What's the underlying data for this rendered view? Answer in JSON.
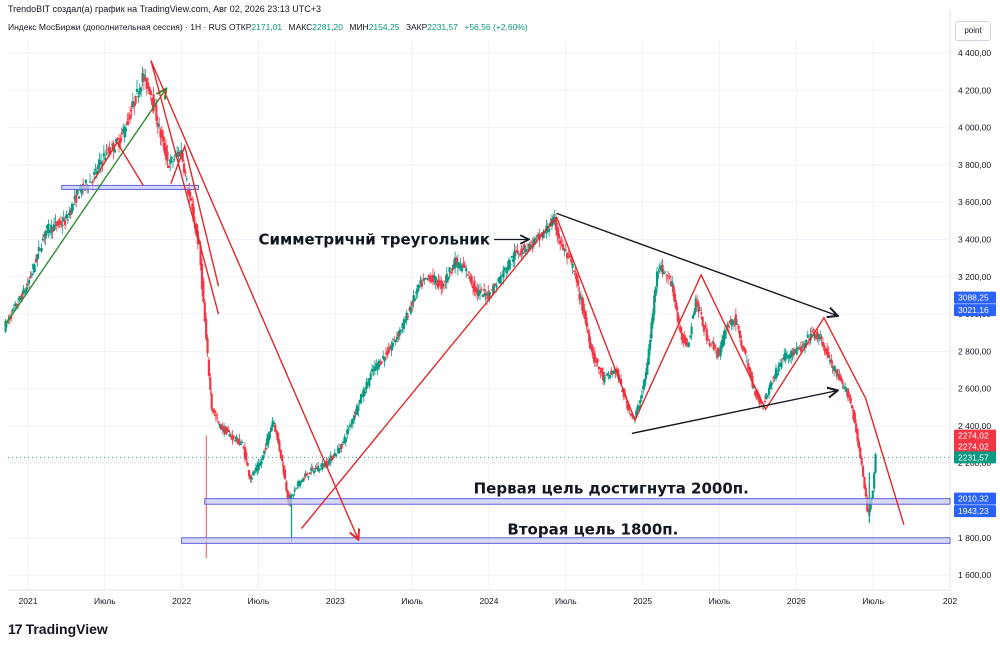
{
  "header": {
    "created_by": "TrendoBIT создал(а) график на TradingView.com, Авг 02, 2026 23:13 UTC+3",
    "instrument": "Индекс МосБиржи (дополнительная сессия) · 1Н · RUS",
    "open_label": "ОТКР",
    "open_value": "2171,01",
    "high_label": "МАКС",
    "high_value": "2281,20",
    "low_label": "МИН",
    "low_value": "2154,25",
    "close_label": "ЗАКР",
    "close_value": "2231,57",
    "change_value": "+56,56 (+2,60%)"
  },
  "scale_mode": "point",
  "footer": {
    "logo_mark": "17",
    "logo_text": "TradingView"
  },
  "colors": {
    "up": "#089981",
    "down": "#f23645",
    "trend_red": "#e0292b",
    "trend_green": "#2e8b2e",
    "zone_fill": "#c9cbf4",
    "zone_border": "#6062d8",
    "badge_blue": "#2962ff",
    "badge_red": "#f23645",
    "badge_green": "#089981"
  },
  "chart_data": {
    "type": "candlestick",
    "title": "Индекс МосБиржи (дополнительная сессия)",
    "y_ticks": [
      "4 400,00",
      "4 200,00",
      "4 000,00",
      "3 800,00",
      "3 600,00",
      "3 400,00",
      "3 200,00",
      "3 000,00",
      "2 800,00",
      "2 600,00",
      "2 400,00",
      "2 200,00",
      "1 800,00",
      "1 600,00"
    ],
    "y_tick_values": [
      4400,
      4200,
      4000,
      3800,
      3600,
      3400,
      3200,
      3000,
      2800,
      2600,
      2400,
      2200,
      1800,
      1600
    ],
    "x_ticks": [
      "2021",
      "Июль",
      "2022",
      "Июль",
      "2023",
      "Июль",
      "2024",
      "Июль",
      "2025",
      "Июль",
      "2026",
      "Июль",
      "202"
    ],
    "x_tick_values": [
      2021.0,
      2021.5,
      2022.0,
      2022.5,
      2023.0,
      2023.5,
      2024.0,
      2024.5,
      2025.0,
      2025.5,
      2026.0,
      2026.5,
      2027.0
    ],
    "xlim": [
      2021.0,
      2027.0
    ],
    "ylim": [
      1520,
      4470
    ],
    "price_path": [
      [
        2020.85,
        2930
      ],
      [
        2021.0,
        3150
      ],
      [
        2021.12,
        3450
      ],
      [
        2021.25,
        3500
      ],
      [
        2021.33,
        3650
      ],
      [
        2021.42,
        3720
      ],
      [
        2021.5,
        3850
      ],
      [
        2021.6,
        3930
      ],
      [
        2021.66,
        4050
      ],
      [
        2021.75,
        4270
      ],
      [
        2021.8,
        4200
      ],
      [
        2021.87,
        3950
      ],
      [
        2021.92,
        3800
      ],
      [
        2022.0,
        3880
      ],
      [
        2022.05,
        3650
      ],
      [
        2022.12,
        3350
      ],
      [
        2022.16,
        2900
      ],
      [
        2022.2,
        2500
      ],
      [
        2022.25,
        2400
      ],
      [
        2022.32,
        2350
      ],
      [
        2022.4,
        2300
      ],
      [
        2022.45,
        2120
      ],
      [
        2022.52,
        2200
      ],
      [
        2022.6,
        2440
      ],
      [
        2022.66,
        2200
      ],
      [
        2022.7,
        1990
      ],
      [
        2022.77,
        2100
      ],
      [
        2022.85,
        2160
      ],
      [
        2022.95,
        2200
      ],
      [
        2023.05,
        2300
      ],
      [
        2023.15,
        2510
      ],
      [
        2023.25,
        2700
      ],
      [
        2023.35,
        2800
      ],
      [
        2023.45,
        2950
      ],
      [
        2023.55,
        3150
      ],
      [
        2023.62,
        3200
      ],
      [
        2023.7,
        3150
      ],
      [
        2023.78,
        3280
      ],
      [
        2023.86,
        3230
      ],
      [
        2023.92,
        3120
      ],
      [
        2024.0,
        3100
      ],
      [
        2024.08,
        3200
      ],
      [
        2024.17,
        3320
      ],
      [
        2024.27,
        3370
      ],
      [
        2024.35,
        3420
      ],
      [
        2024.4,
        3480
      ],
      [
        2024.43,
        3500
      ],
      [
        2024.47,
        3380
      ],
      [
        2024.55,
        3250
      ],
      [
        2024.62,
        3010
      ],
      [
        2024.68,
        2780
      ],
      [
        2024.75,
        2650
      ],
      [
        2024.83,
        2700
      ],
      [
        2024.9,
        2520
      ],
      [
        2024.95,
        2430
      ],
      [
        2025.0,
        2580
      ],
      [
        2025.03,
        2700
      ],
      [
        2025.07,
        3000
      ],
      [
        2025.1,
        3260
      ],
      [
        2025.15,
        3220
      ],
      [
        2025.2,
        3150
      ],
      [
        2025.25,
        2880
      ],
      [
        2025.3,
        2840
      ],
      [
        2025.35,
        3080
      ],
      [
        2025.42,
        2880
      ],
      [
        2025.5,
        2780
      ],
      [
        2025.55,
        2930
      ],
      [
        2025.6,
        2980
      ],
      [
        2025.67,
        2780
      ],
      [
        2025.72,
        2620
      ],
      [
        2025.78,
        2500
      ],
      [
        2025.85,
        2650
      ],
      [
        2025.92,
        2770
      ],
      [
        2026.0,
        2800
      ],
      [
        2026.05,
        2820
      ],
      [
        2026.1,
        2900
      ],
      [
        2026.16,
        2870
      ],
      [
        2026.22,
        2750
      ],
      [
        2026.3,
        2620
      ],
      [
        2026.35,
        2560
      ],
      [
        2026.4,
        2350
      ],
      [
        2026.44,
        2120
      ],
      [
        2026.47,
        1920
      ],
      [
        2026.5,
        2050
      ],
      [
        2026.52,
        2231.57
      ]
    ],
    "horizontal_zones": [
      {
        "y_low": 3670,
        "y_high": 3690,
        "x_start": 2021.22,
        "x_end": 2022.11
      },
      {
        "y_low": 1980,
        "y_high": 2010,
        "x_start": 2022.15,
        "x_end": 2027.0
      },
      {
        "y_low": 1770,
        "y_high": 1800,
        "x_start": 2022.0,
        "x_end": 2027.0
      }
    ],
    "trend_lines": [
      {
        "color": "green",
        "points": [
          [
            2020.85,
            2940
          ],
          [
            2021.9,
            4210
          ]
        ],
        "arrow": true
      },
      {
        "color": "red",
        "points": [
          [
            2021.8,
            4360
          ],
          [
            2022.24,
            3000
          ]
        ],
        "arrow": false
      },
      {
        "color": "red",
        "points": [
          [
            2021.8,
            4360
          ],
          [
            2023.15,
            1790
          ]
        ],
        "arrow": true
      },
      {
        "color": "red",
        "points": [
          [
            2021.43,
            3720
          ],
          [
            2021.58,
            3920
          ],
          [
            2021.75,
            3690
          ]
        ],
        "arrow": false
      },
      {
        "color": "red",
        "points": [
          [
            2021.93,
            3700
          ],
          [
            2022.02,
            3900
          ],
          [
            2022.24,
            3150
          ]
        ],
        "arrow": false
      },
      {
        "color": "red",
        "points": [
          [
            2022.78,
            1850
          ],
          [
            2024.44,
            3520
          ]
        ],
        "arrow": false
      },
      {
        "color": "red",
        "points": [
          [
            2024.44,
            3520
          ],
          [
            2024.95,
            2430
          ],
          [
            2025.38,
            3210
          ],
          [
            2025.8,
            2490
          ],
          [
            2026.18,
            2980
          ],
          [
            2026.45,
            2550
          ],
          [
            2026.7,
            1870
          ]
        ],
        "arrow": false
      },
      {
        "color": "black",
        "points": [
          [
            2024.44,
            3540
          ],
          [
            2026.27,
            2990
          ]
        ],
        "arrow": true
      },
      {
        "color": "black",
        "points": [
          [
            2024.93,
            2360
          ],
          [
            2026.27,
            2590
          ]
        ],
        "arrow": true
      }
    ],
    "annotations": [
      {
        "text": "Симметричнй треугольник",
        "x": 2022.5,
        "y": 3400,
        "arrow_to": [
          2024.26,
          3400
        ]
      },
      {
        "text": "Первая цель достигнута 2000п.",
        "x": 2023.9,
        "y": 2065
      },
      {
        "text": "Вторая цель 1800п.",
        "x": 2024.12,
        "y": 1845
      }
    ],
    "price_badges": [
      {
        "label": "3088,25",
        "y": 3088.25,
        "color": "blue"
      },
      {
        "label": "3021,16",
        "y": 3021.16,
        "color": "blue"
      },
      {
        "label": "2274,02",
        "y": 2348,
        "color": "red"
      },
      {
        "label": "2274,02",
        "y": 2290,
        "color": "red"
      },
      {
        "label": "2231,57",
        "y": 2231.57,
        "color": "green"
      },
      {
        "label": "2010,32",
        "y": 2010.32,
        "color": "blue"
      },
      {
        "label": "1943,23",
        "y": 1943.23,
        "color": "blue"
      }
    ]
  }
}
